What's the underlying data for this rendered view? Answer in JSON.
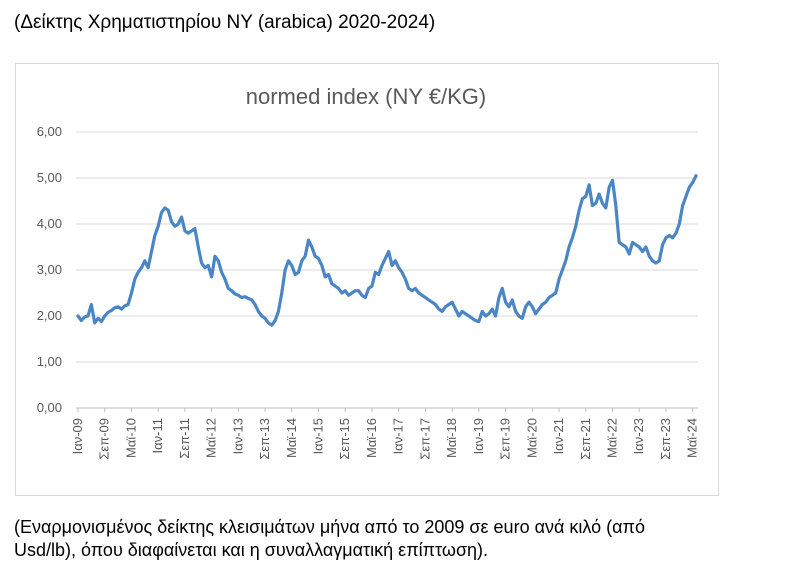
{
  "heading": "(Δείκτης Χρηματιστηρίου ΝΥ (arabica) 2020-2024)",
  "caption_line1": "(Εναρμονισμένος δείκτης κλεισιμάτων μήνα από το 2009 σε euro ανά κιλό (από",
  "caption_line2": "Usd/lb), όπου διαφαίνεται και η συναλλαγματική επίπτωση).",
  "colors": {
    "line": "#4a86c5",
    "grid": "#d9d9d9",
    "text": "#595959"
  },
  "chart_data": {
    "type": "line",
    "title": "normed index (NY €/KG)",
    "xlabel": "",
    "ylabel": "",
    "ylim": [
      0,
      6
    ],
    "y_ticks": [
      0,
      1,
      2,
      3,
      4,
      5,
      6
    ],
    "y_tick_labels": [
      "0,00",
      "1,00",
      "2,00",
      "3,00",
      "4,00",
      "5,00",
      "6,00"
    ],
    "x_start": "2009-01",
    "x_tick_labels": [
      "Ιαν-09",
      "Σεπ-09",
      "Μαϊ-10",
      "Ιαν-11",
      "Σεπ-11",
      "Μαϊ-12",
      "Ιαν-13",
      "Σεπ-13",
      "Μαϊ-14",
      "Ιαν-15",
      "Σεπ-15",
      "Μαϊ-16",
      "Ιαν-17",
      "Σεπ-17",
      "Μαϊ-18",
      "Ιαν-19",
      "Σεπ-19",
      "Μαϊ-20",
      "Ιαν-21",
      "Σεπ-21",
      "Μαϊ-22",
      "Ιαν-23",
      "Σεπ-23",
      "Μαϊ-24"
    ],
    "grid": "horizontal",
    "legend": "none",
    "series": [
      {
        "values": [
          2.0,
          1.9,
          1.98,
          2.0,
          2.25,
          1.85,
          1.95,
          1.88,
          2.0,
          2.08,
          2.12,
          2.18,
          2.2,
          2.15,
          2.22,
          2.25,
          2.5,
          2.8,
          2.95,
          3.05,
          3.2,
          3.05,
          3.4,
          3.75,
          3.95,
          4.25,
          4.35,
          4.3,
          4.05,
          3.95,
          4.0,
          4.15,
          3.85,
          3.8,
          3.85,
          3.9,
          3.5,
          3.15,
          3.05,
          3.1,
          2.85,
          3.3,
          3.2,
          2.95,
          2.8,
          2.6,
          2.55,
          2.48,
          2.45,
          2.4,
          2.42,
          2.38,
          2.35,
          2.25,
          2.1,
          2.0,
          1.95,
          1.85,
          1.8,
          1.9,
          2.1,
          2.5,
          3.0,
          3.2,
          3.1,
          2.9,
          2.95,
          3.2,
          3.3,
          3.65,
          3.5,
          3.3,
          3.25,
          3.1,
          2.85,
          2.9,
          2.7,
          2.65,
          2.6,
          2.5,
          2.55,
          2.45,
          2.5,
          2.55,
          2.55,
          2.45,
          2.4,
          2.6,
          2.65,
          2.95,
          2.9,
          3.1,
          3.25,
          3.4,
          3.1,
          3.2,
          3.05,
          2.95,
          2.8,
          2.6,
          2.55,
          2.6,
          2.5,
          2.45,
          2.4,
          2.35,
          2.3,
          2.25,
          2.15,
          2.1,
          2.2,
          2.25,
          2.3,
          2.15,
          2.0,
          2.1,
          2.05,
          2.0,
          1.95,
          1.9,
          1.88,
          2.1,
          2.0,
          2.05,
          2.15,
          2.0,
          2.4,
          2.6,
          2.3,
          2.2,
          2.35,
          2.1,
          2.0,
          1.95,
          2.2,
          2.3,
          2.2,
          2.05,
          2.15,
          2.25,
          2.3,
          2.4,
          2.45,
          2.5,
          2.8,
          3.0,
          3.2,
          3.5,
          3.7,
          3.95,
          4.3,
          4.55,
          4.6,
          4.85,
          4.4,
          4.45,
          4.65,
          4.45,
          4.35,
          4.8,
          4.95,
          4.4,
          3.6,
          3.55,
          3.5,
          3.35,
          3.6,
          3.55,
          3.5,
          3.4,
          3.5,
          3.3,
          3.2,
          3.15,
          3.2,
          3.55,
          3.7,
          3.75,
          3.7,
          3.8,
          4.0,
          4.4,
          4.6,
          4.8,
          4.9,
          5.05
        ]
      }
    ]
  }
}
